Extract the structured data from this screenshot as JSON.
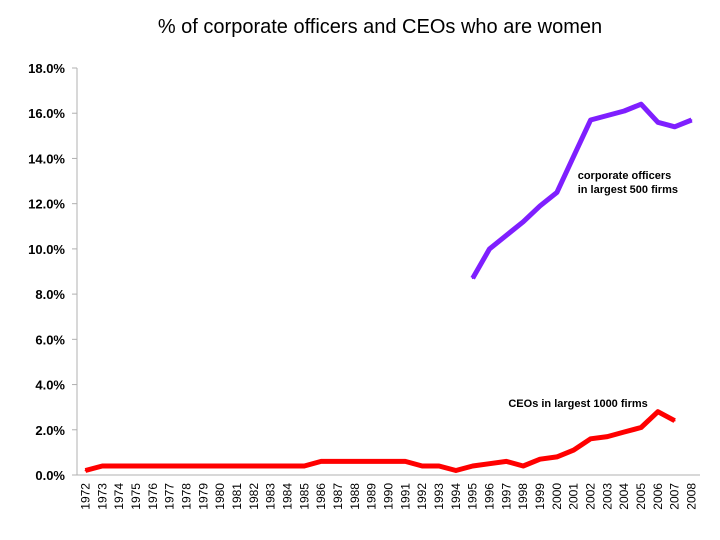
{
  "chart_data": {
    "type": "line",
    "title": "% of corporate officers and CEOs who are women",
    "xlabel": "",
    "ylabel": "",
    "ylim": [
      0,
      18
    ],
    "yticks": [
      "0.0%",
      "2.0%",
      "4.0%",
      "6.0%",
      "8.0%",
      "10.0%",
      "12.0%",
      "14.0%",
      "16.0%",
      "18.0%"
    ],
    "grid": false,
    "legend": "none",
    "categories": [
      "1972",
      "1973",
      "1974",
      "1975",
      "1976",
      "1977",
      "1978",
      "1979",
      "1980",
      "1981",
      "1982",
      "1983",
      "1984",
      "1985",
      "1986",
      "1987",
      "1988",
      "1989",
      "1990",
      "1991",
      "1992",
      "1993",
      "1994",
      "1995",
      "1996",
      "1997",
      "1998",
      "1999",
      "2000",
      "2001",
      "2002",
      "2003",
      "2004",
      "2005",
      "2006",
      "2007",
      "2008"
    ],
    "series": [
      {
        "name": "corporate officers in largest 500 firms",
        "label_lines": [
          "corporate officers",
          "in largest 500 firms"
        ],
        "color": "#7f1fff",
        "values": [
          null,
          null,
          null,
          null,
          null,
          null,
          null,
          null,
          null,
          null,
          null,
          null,
          null,
          null,
          null,
          null,
          null,
          null,
          null,
          null,
          null,
          null,
          null,
          8.7,
          10.0,
          10.6,
          11.2,
          11.9,
          12.5,
          14.1,
          15.7,
          15.9,
          16.1,
          16.4,
          15.6,
          15.4,
          15.7
        ]
      },
      {
        "name": "CEOs in largest 1000 firms",
        "label_lines": [
          "CEOs in largest 1000 firms"
        ],
        "color": "#ff0000",
        "values": [
          0.2,
          0.4,
          0.4,
          0.4,
          0.4,
          0.4,
          0.4,
          0.4,
          0.4,
          0.4,
          0.4,
          0.4,
          0.4,
          0.4,
          0.6,
          0.6,
          0.6,
          0.6,
          0.6,
          0.6,
          0.4,
          0.4,
          0.2,
          0.4,
          0.5,
          0.6,
          0.4,
          0.7,
          0.8,
          1.1,
          1.6,
          1.7,
          1.9,
          2.1,
          2.8,
          2.4,
          null
        ]
      }
    ]
  }
}
